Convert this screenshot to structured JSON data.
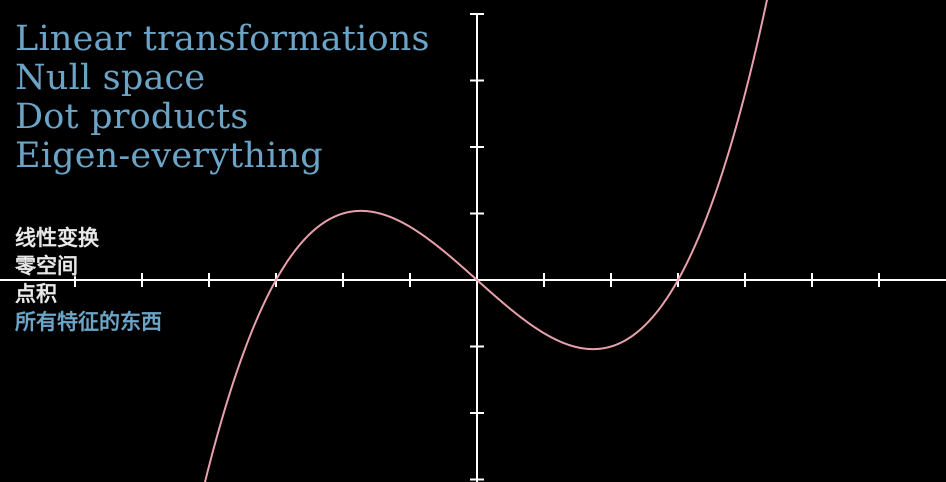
{
  "topics": [
    "Linear transformations",
    "Null space",
    "Dot products",
    "Eigen-everything"
  ],
  "topics_cn": [
    "线性变换",
    "零空间",
    "点积",
    "所有特征的东西"
  ],
  "colors": {
    "background": "#000000",
    "axes": "#ffffff",
    "curve": "#e8a0ac",
    "topic_text": "#6ba4c6",
    "cn_text_light": "#e8e8e8",
    "cn_text_blue": "#6ba4c6"
  },
  "chart_data": {
    "type": "line",
    "function": "y = x^3 - 9x",
    "x_range": [
      -7,
      7
    ],
    "y_range": [
      -3,
      4
    ],
    "x_ticks": [
      -6,
      -5,
      -4,
      -3,
      -2,
      -1,
      1,
      2,
      3,
      4,
      5,
      6
    ],
    "y_ticks": [
      -3,
      -2,
      -1,
      1,
      2,
      3,
      4
    ],
    "y_scale_note": "y values plotted divided by 10",
    "local_max": {
      "x": -1.73,
      "y": 1.04
    },
    "local_min": {
      "x": 1.73,
      "y": -1.04
    },
    "roots": [
      -3,
      0,
      3
    ]
  }
}
